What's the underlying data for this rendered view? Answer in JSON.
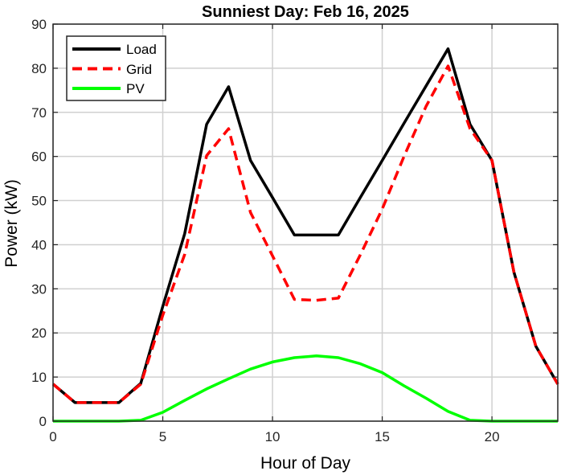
{
  "chart_data": {
    "type": "line",
    "title": "Sunniest Day: Feb 16, 2025",
    "xlabel": "Hour of Day",
    "ylabel": "Power (kW)",
    "xlim": [
      0,
      23
    ],
    "ylim": [
      0,
      90
    ],
    "xticks": [
      0,
      5,
      10,
      15,
      20
    ],
    "yticks": [
      0,
      10,
      20,
      30,
      40,
      50,
      60,
      70,
      80,
      90
    ],
    "grid": true,
    "legend_position": "top-left",
    "x": [
      0,
      1,
      2,
      3,
      4,
      5,
      6,
      7,
      8,
      9,
      10,
      11,
      12,
      13,
      14,
      15,
      16,
      17,
      18,
      19,
      20,
      21,
      22,
      23
    ],
    "series": [
      {
        "name": "Load",
        "color": "#000000",
        "style": "solid",
        "values": [
          8.4,
          4.2,
          4.2,
          4.2,
          8.6,
          26,
          42.5,
          67.3,
          75.8,
          59.1,
          50.7,
          42.2,
          42.2,
          42.2,
          50.7,
          59.1,
          67.6,
          76,
          84.4,
          67.3,
          59.1,
          33.8,
          17,
          8.4
        ]
      },
      {
        "name": "Grid",
        "color": "#ff0000",
        "style": "dashed",
        "values": [
          8.4,
          4.2,
          4.2,
          4.2,
          8.4,
          24,
          37.8,
          60.2,
          66.3,
          47.3,
          37.5,
          27.6,
          27.4,
          27.9,
          37.7,
          48.1,
          60.1,
          71.4,
          80.5,
          66.3,
          59.1,
          33.8,
          17,
          8.4
        ]
      },
      {
        "name": "PV",
        "color": "#00ff00",
        "style": "solid",
        "values": [
          0,
          0,
          0,
          0,
          0.2,
          2,
          4.7,
          7.3,
          9.6,
          11.8,
          13.4,
          14.4,
          14.8,
          14.4,
          13,
          11,
          8,
          5.2,
          2.2,
          0.2,
          0,
          0,
          0,
          0
        ]
      }
    ]
  }
}
